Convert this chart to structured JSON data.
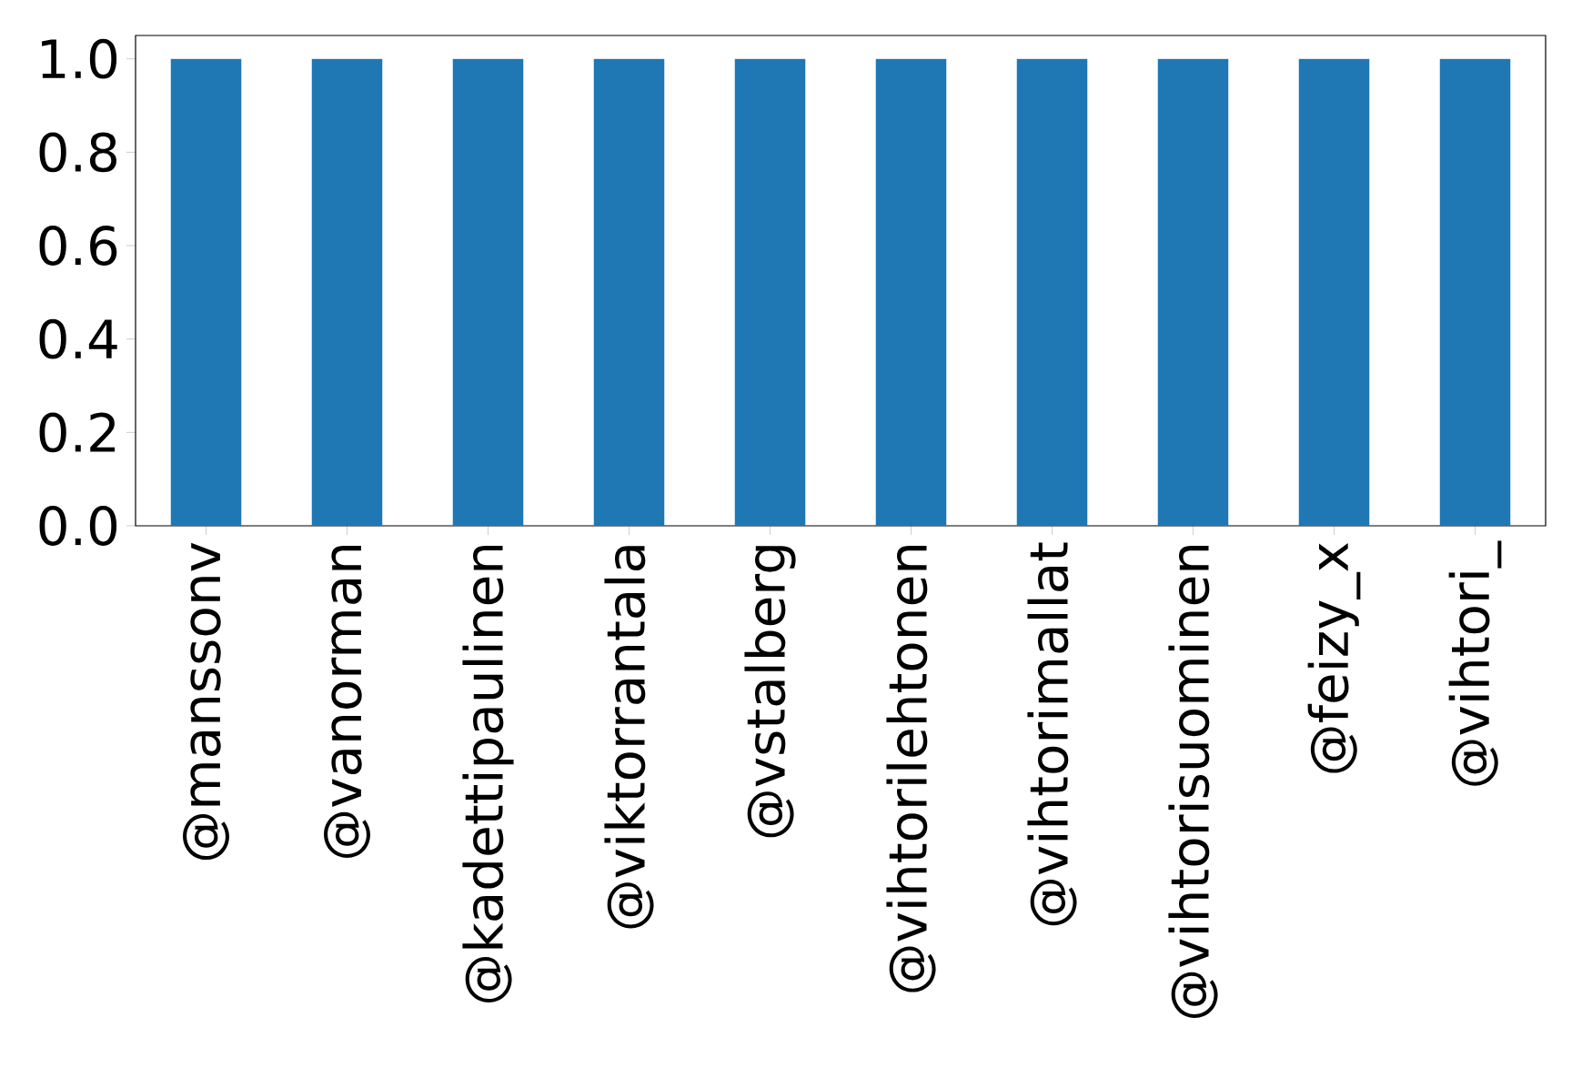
{
  "chart_data": {
    "type": "bar",
    "categories": [
      "@manssonv",
      "@vanorman",
      "@kadettipaulinen",
      "@viktorrantala",
      "@vstalberg",
      "@vihtorilehtonen",
      "@vihtorimallat",
      "@vihtorisuominen",
      "@feizy_x",
      "@vihtori_"
    ],
    "values": [
      1,
      1,
      1,
      1,
      1,
      1,
      1,
      1,
      1,
      1
    ],
    "color": "#1f77b4",
    "ylim": [
      0,
      1.05
    ],
    "yticks": [
      {
        "value": 0,
        "label": "0.0"
      },
      {
        "value": 0.2,
        "label": "0.2"
      },
      {
        "value": 0.4,
        "label": "0.4"
      },
      {
        "value": 0.6,
        "label": "0.6"
      },
      {
        "value": 0.8,
        "label": "0.8"
      },
      {
        "value": 1,
        "label": "1.0"
      }
    ],
    "grid": false
  }
}
